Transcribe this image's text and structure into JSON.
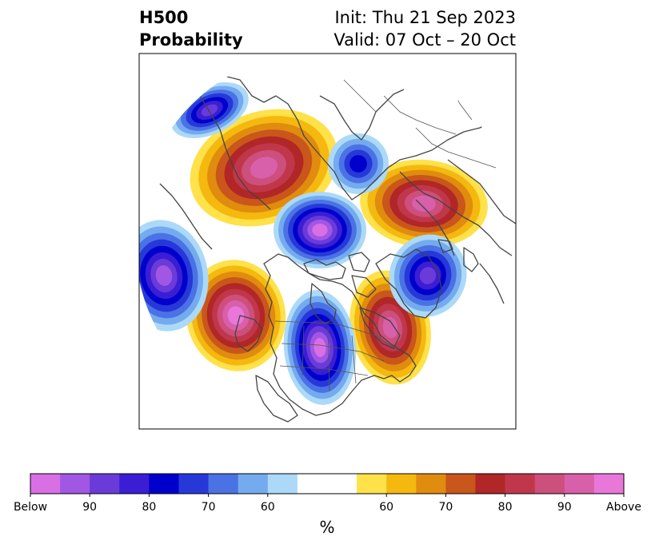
{
  "title": {
    "left_line1": "H500",
    "left_line2": "Probability",
    "right_line1": "Init: Thu 21 Sep 2023",
    "right_line2": "Valid: 07 Oct – 20 Oct"
  },
  "colorbar": {
    "colors": [
      "#d86fe4",
      "#a157e3",
      "#6a3bd9",
      "#3b1ed4",
      "#0000cc",
      "#2639d8",
      "#4b72e4",
      "#74abef",
      "#acd9f8",
      "#ffffff",
      "#ffffff",
      "#ffe14a",
      "#f4b80f",
      "#e08c0e",
      "#c9561a",
      "#b12627",
      "#c0374b",
      "#cc4f7c",
      "#d85fa9",
      "#e877d9"
    ],
    "tick_labels": [
      "Below",
      "90",
      "80",
      "70",
      "60",
      "60",
      "70",
      "80",
      "90",
      "Above"
    ],
    "unit": "%"
  },
  "map_anomalies": [
    {
      "id": "neg-gl",
      "sign": -1,
      "level": 9
    },
    {
      "id": "neg-pac",
      "sign": -1,
      "level": 8
    },
    {
      "id": "neg-us",
      "sign": -1,
      "level": 9
    },
    {
      "id": "neg-atl",
      "sign": -1,
      "level": 7
    },
    {
      "id": "neg-nw",
      "sign": -1,
      "level": 7
    },
    {
      "id": "neg-ns",
      "sign": -1,
      "level": 5
    },
    {
      "id": "pos-sib",
      "sign": 1,
      "level": 8
    },
    {
      "id": "pos-eu",
      "sign": 1,
      "level": 8
    },
    {
      "id": "pos-ak",
      "sign": 1,
      "level": 9
    },
    {
      "id": "pos-ec",
      "sign": 1,
      "level": 8
    }
  ]
}
